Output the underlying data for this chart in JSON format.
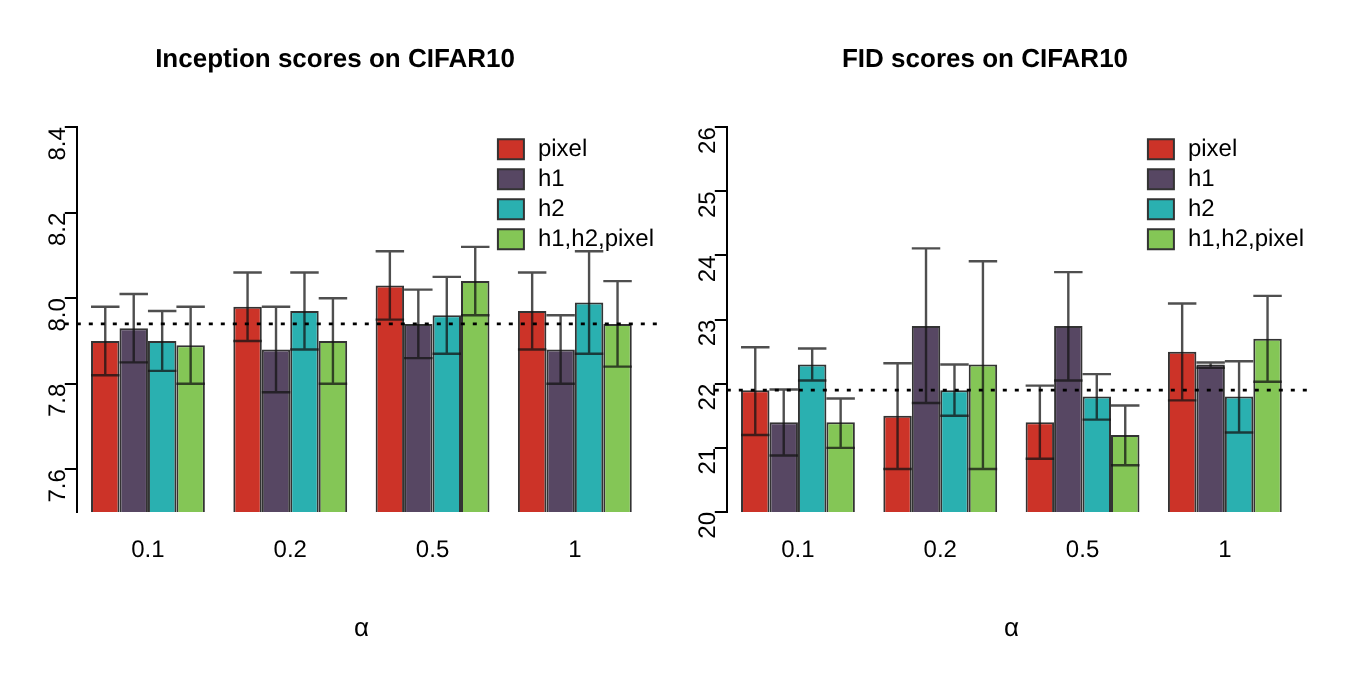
{
  "chart_data": [
    {
      "type": "bar",
      "title": "Inception scores on CIFAR10",
      "xlabel": "α",
      "categories": [
        "0.1",
        "0.2",
        "0.5",
        "1"
      ],
      "ylim": [
        7.5,
        8.4
      ],
      "yticks": [
        7.6,
        7.8,
        {
          "value": 8,
          "label": "8.0"
        },
        8.2,
        8.4
      ],
      "grid": false,
      "legend": "top right",
      "series": [
        {
          "name": "pixel",
          "color": "#cc3328",
          "values": [
            7.9,
            7.98,
            8.03,
            7.97
          ],
          "errors": [
            [
              7.82,
              7.98
            ],
            [
              7.9,
              8.06
            ],
            [
              7.95,
              8.11
            ],
            [
              7.88,
              8.06
            ]
          ]
        },
        {
          "name": "h1",
          "color": "#574763",
          "values": [
            7.93,
            7.88,
            7.94,
            7.88
          ],
          "errors": [
            [
              7.85,
              8.01
            ],
            [
              7.78,
              7.98
            ],
            [
              7.86,
              8.02
            ],
            [
              7.8,
              7.96
            ]
          ]
        },
        {
          "name": "h2",
          "color": "#2ab0b0",
          "values": [
            7.9,
            7.97,
            7.96,
            7.99
          ],
          "errors": [
            [
              7.83,
              7.97
            ],
            [
              7.88,
              8.06
            ],
            [
              7.87,
              8.05
            ],
            [
              7.87,
              8.11
            ]
          ]
        },
        {
          "name": "h1,h2,pixel",
          "color": "#84c656",
          "values": [
            7.89,
            7.9,
            8.04,
            7.94
          ],
          "errors": [
            [
              7.8,
              7.98
            ],
            [
              7.8,
              8.0
            ],
            [
              7.96,
              8.12
            ],
            [
              7.84,
              8.04
            ]
          ]
        }
      ],
      "ref_lines": [
        {
          "axis": "y",
          "value": 7.94,
          "line_style": "dotted"
        }
      ]
    },
    {
      "type": "bar",
      "title": "FID scores on CIFAR10",
      "xlabel": "α",
      "categories": [
        "0.1",
        "0.2",
        "0.5",
        "1"
      ],
      "ylim": [
        20,
        26
      ],
      "yticks": [
        20,
        21,
        22,
        23,
        24,
        25,
        26
      ],
      "grid": false,
      "legend": "top right",
      "series": [
        {
          "name": "pixel",
          "color": "#cc3328",
          "values": [
            21.9,
            21.5,
            21.4,
            22.5
          ],
          "errors": [
            [
              21.2,
              22.57
            ],
            [
              20.67,
              22.32
            ],
            [
              20.83,
              21.97
            ],
            [
              21.74,
              23.25
            ]
          ]
        },
        {
          "name": "h1",
          "color": "#574763",
          "values": [
            21.4,
            22.9,
            22.9,
            22.3
          ],
          "errors": [
            [
              20.88,
              21.91
            ],
            [
              21.7,
              24.11
            ],
            [
              22.05,
              23.74
            ],
            [
              22.25,
              22.33
            ]
          ]
        },
        {
          "name": "h2",
          "color": "#2ab0b0",
          "values": [
            22.3,
            21.9,
            21.8,
            21.8
          ],
          "errors": [
            [
              22.05,
              22.55
            ],
            [
              21.5,
              22.3
            ],
            [
              21.44,
              22.15
            ],
            [
              21.24,
              22.35
            ]
          ]
        },
        {
          "name": "h1,h2,pixel",
          "color": "#84c656",
          "values": [
            21.4,
            22.3,
            21.2,
            22.7
          ],
          "errors": [
            [
              21.0,
              21.77
            ],
            [
              20.67,
              23.91
            ],
            [
              20.73,
              21.66
            ],
            [
              22.03,
              23.37
            ]
          ]
        }
      ],
      "ref_lines": [
        {
          "axis": "y",
          "value": 21.9,
          "line_style": "dotted"
        }
      ]
    }
  ]
}
